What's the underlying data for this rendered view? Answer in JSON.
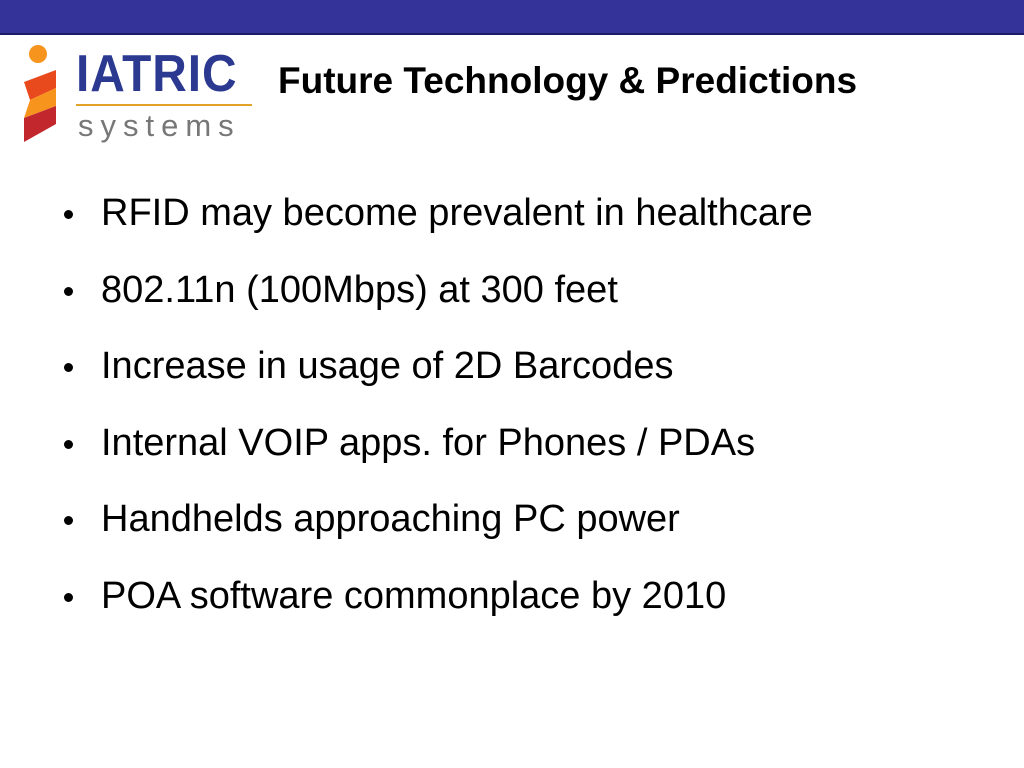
{
  "logo": {
    "name": "IATRIC",
    "tagline": "systems"
  },
  "header": {
    "title": "Future Technology & Predictions"
  },
  "bullets": [
    "RFID may become prevalent in healthcare",
    "802.11n (100Mbps) at 300 feet",
    "Increase in usage of 2D Barcodes",
    "Internal VOIP apps. for Phones / PDAs",
    "Handhelds approaching PC power",
    "POA software commonplace by 2010"
  ]
}
